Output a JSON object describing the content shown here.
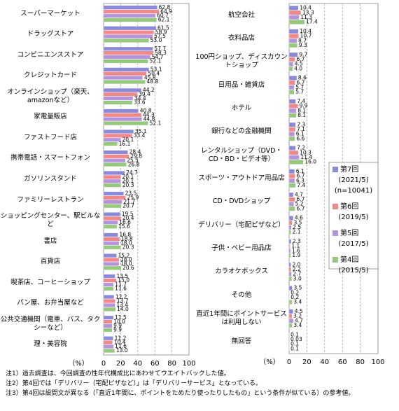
{
  "chart_data": [
    {
      "type": "hbar",
      "x_label": "（%）",
      "xlim": [
        0,
        100
      ],
      "xticks": [
        0,
        20,
        40,
        60,
        80,
        100
      ],
      "grid": true,
      "categories": [
        "スーパーマーケット",
        "ドラッグストア",
        "コンビニエンスストア",
        "クレジットカード",
        "オンラインショップ（楽天、amazonなど）",
        "家電量販店",
        "ファストフード店",
        "携帯電話・スマートフォン",
        "ガソリンスタンド",
        "ファミリーレストラン",
        "ショッピングセンター、駅ビルなど",
        "書店",
        "百貨店",
        "喫茶店、コーヒーショップ",
        "パン屋、お弁当屋など",
        "公共交通機関（電車、バス、タクシーなど）",
        "理・美容院"
      ],
      "series": [
        {
          "name": "第7回",
          "color": "#8a8ad8",
          "values": [
            62.8,
            61.5,
            57.7,
            53.1,
            44.2,
            40.8,
            35.1,
            28.4,
            24.7,
            23.5,
            19.5,
            16.8,
            15.2,
            13.5,
            12.2,
            11.5,
            11.2
          ],
          "value_labels": [
            "62.8",
            "61.5",
            "57.7",
            "53.1",
            "44.2",
            "40.8",
            "35.1",
            "28.4",
            "24.7",
            "23.5",
            "19.5",
            "16.8",
            "15.2",
            "13.5",
            "12.2",
            "11.5",
            "11.2"
          ]
        },
        {
          "name": "第6回",
          "color": "#f08a8a",
          "values": [
            64.9,
            58.9,
            58.3,
            50.4,
            39.4,
            44.3,
            33.4,
            29.8,
            20.1,
            25.9,
            20.4,
            18.8,
            18.0,
            15.0,
            13.7,
            10.0,
            10.4
          ],
          "value_labels": [
            "64.9",
            "58.9",
            "58.3",
            "50.4",
            "39.4",
            "44.3",
            "33.4",
            "29.8",
            "20.1",
            "25.9",
            "20.4",
            "18.8",
            "18.0",
            "15.0",
            "13.7",
            "10.0",
            "10.4"
          ]
        },
        {
          "name": "第5回",
          "color": "#b495dc",
          "values": [
            60.7,
            57.5,
            54.7,
            45.8,
            34.4,
            44.8,
            20.1,
            25.5,
            20.1,
            21.7,
            16.6,
            18.0,
            18.0,
            11.7,
            13.4,
            9.9,
            11.6
          ],
          "value_labels": [
            "60.7",
            "57.5",
            "54.7",
            "45.8",
            "34.4",
            "44.8",
            "20.1",
            "25.5",
            "20.1",
            "21.7",
            "16.6",
            "18.0",
            "18.0",
            "11.7",
            "13.4",
            "9.9",
            "11.6"
          ]
        },
        {
          "name": "第4回",
          "color": "#96c87e",
          "values": [
            62.1,
            53.0,
            52.1,
            48.8,
            33.6,
            52.1,
            16.1,
            26.8,
            20.3,
            20.7,
            15.6,
            20.3,
            20.6,
            11.6,
            14.0,
            9.9,
            13.0
          ],
          "value_labels": [
            "62.1",
            "53.0",
            "52.1",
            "48.8",
            "33.6",
            "52.1",
            "16.1",
            "26.8",
            "20.3",
            "20.7",
            "15.6",
            "20.3",
            "20.6",
            "11.6",
            "14.0",
            "9.9",
            "13.0"
          ]
        }
      ]
    },
    {
      "type": "hbar",
      "x_label": "（%）",
      "xlim": [
        0,
        100
      ],
      "xticks": [
        0,
        20,
        40,
        60,
        80,
        100
      ],
      "grid": true,
      "legend": "center-right",
      "categories": [
        "航空会社",
        "衣料品店",
        "100円ショップ、ディスカウントショップ",
        "日用品・雑貨店",
        "ホテル",
        "銀行などの金融機関",
        "レンタルショップ（DVD・CD・BD・ビデオ等）",
        "スポーツ・アウトドア用品店",
        "CD・DVDショップ",
        "デリバリー（宅配ピザなど）",
        "子供・ベビー用品店",
        "カラオケボックス",
        "その他",
        "直近1年間にポイントサービスは利用しない",
        "無回答"
      ],
      "series": [
        {
          "name": "第7回",
          "period": "(2021/5)",
          "n": "(n=10041)",
          "color": "#8a8ad8",
          "values": [
            10.4,
            10.4,
            9.7,
            8.6,
            7.4,
            7.3,
            7.2,
            6.1,
            4.7,
            4.6,
            2.3,
            2.0,
            3.5,
            4.5,
            0.1
          ],
          "value_labels": [
            "10.4",
            "10.4",
            "9.7",
            "8.6",
            "7.4",
            "7.3",
            "7.2",
            "6.1",
            "4.7",
            "4.6",
            "2.3",
            "2.0",
            "3.5",
            "4.5",
            "0.1"
          ]
        },
        {
          "name": "第6回",
          "period": "(2019/5)",
          "color": "#f08a8a",
          "values": [
            13.3,
            10.7,
            6.7,
            6.7,
            9.9,
            7.1,
            10.3,
            6.7,
            6.7,
            3.5,
            1.1,
            2.2,
            0.2,
            3.2,
            0.03
          ],
          "value_labels": [
            "13.3",
            "10.7",
            "6.7",
            "6.7",
            "9.9",
            "7.1",
            "10.3",
            "6.7",
            "6.7",
            "3.5",
            "1.1",
            "2.2",
            "0.2",
            "3.2",
            "0.03"
          ]
        },
        {
          "name": "第5回",
          "period": "(2017/5)",
          "color": "#b495dc",
          "values": [
            11.3,
            8.7,
            4.5,
            5.7,
            8.1,
            6.1,
            11.4,
            6.3,
            5.2,
            2.5,
            1.6,
            2.7,
            0.2,
            4.7,
            0.1
          ],
          "value_labels": [
            "11.3",
            "8.7",
            "4.5",
            "5.7",
            "8.1",
            "6.1",
            "11.4",
            "6.3",
            "5.2",
            "2.5",
            "1.6",
            "2.7",
            "0.2",
            "4.7",
            "0.1"
          ]
        },
        {
          "name": "第4回",
          "period": "(2015/5)",
          "color": "#96c87e",
          "values": [
            17.4,
            9.3,
            4.0,
            5.7,
            8.1,
            6.6,
            16.0,
            7.4,
            6.7,
            2.1,
            1.9,
            3.0,
            3.4,
            3.4,
            0.1
          ],
          "value_labels": [
            "17.4",
            "9.3",
            "4.0",
            "5.7",
            "8.1",
            "6.6",
            "16.0",
            "7.4",
            "6.7",
            "2.1",
            "1.9",
            "3.0",
            "3.4",
            "3.4",
            "0.1"
          ]
        }
      ]
    }
  ],
  "notes": [
    "注1）過去調査は、今回調査の性年代構成比にあわせてウエイトバックした値。",
    "注2）第4回では「デリバリー（宅配ピザなど）」は「デリバリーサービス」となっている。",
    "注3）第4回は設問文が異なる（「直近1年間に、ポイントをためたり使ったりしたもの」という条件が似ている）の参考値。"
  ]
}
